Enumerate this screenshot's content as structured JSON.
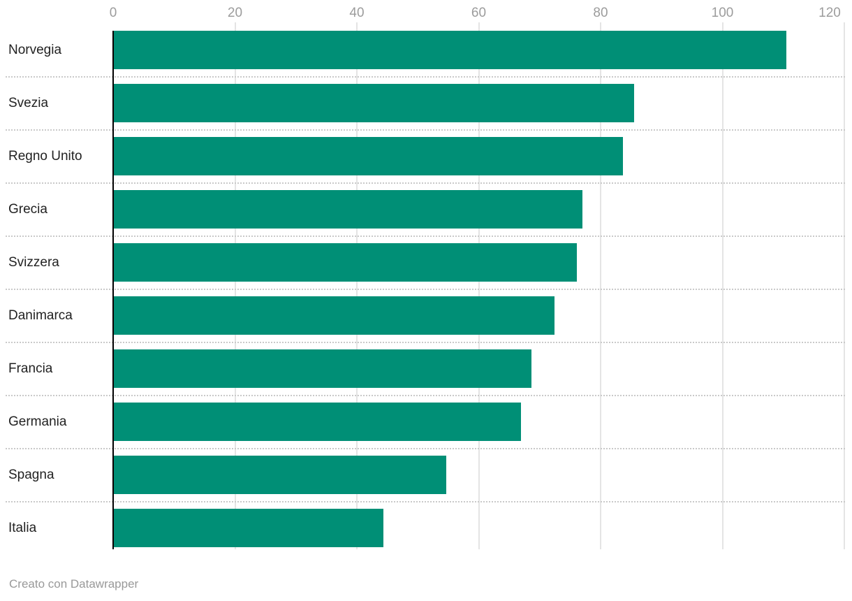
{
  "chart_data": {
    "type": "bar",
    "orientation": "horizontal",
    "title": "",
    "xlabel": "",
    "ylabel": "",
    "categories": [
      "Norvegia",
      "Svezia",
      "Regno Unito",
      "Grecia",
      "Svizzera",
      "Danimarca",
      "Francia",
      "Germania",
      "Spagna",
      "Italia"
    ],
    "values": [
      110.5,
      85.5,
      83.7,
      77.0,
      76.1,
      72.4,
      68.7,
      66.9,
      54.7,
      44.4
    ],
    "xlim": [
      0,
      120
    ],
    "x_ticks": [
      0,
      20,
      40,
      60,
      80,
      100,
      120
    ],
    "grid": "vertical-gridlines-on",
    "legend": "none"
  },
  "colors": {
    "bar": "#008f76",
    "axis_label": "#9c9c9c",
    "category_label": "#222222",
    "gridline": "#e4e4e4",
    "separator": "#c9c9c9",
    "axis_line": "#000000",
    "footer_text": "#999999",
    "background": "#ffffff"
  },
  "footer": {
    "credit": "Creato con Datawrapper"
  }
}
